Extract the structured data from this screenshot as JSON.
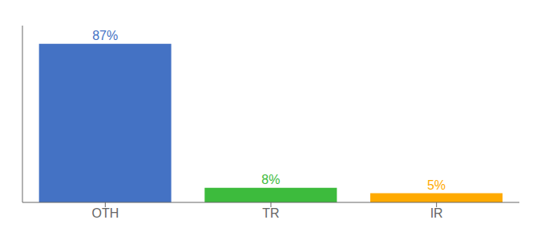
{
  "chart_data": {
    "type": "bar",
    "categories": [
      "OTH",
      "TR",
      "IR"
    ],
    "values": [
      87,
      8,
      5
    ],
    "value_labels": [
      "87%",
      "8%",
      "5%"
    ],
    "colors": [
      "#4472c4",
      "#3dbb3d",
      "#ffaa00"
    ],
    "ylim": [
      0,
      97
    ],
    "data_labels": true,
    "tick_labels": "x",
    "grid": false
  }
}
